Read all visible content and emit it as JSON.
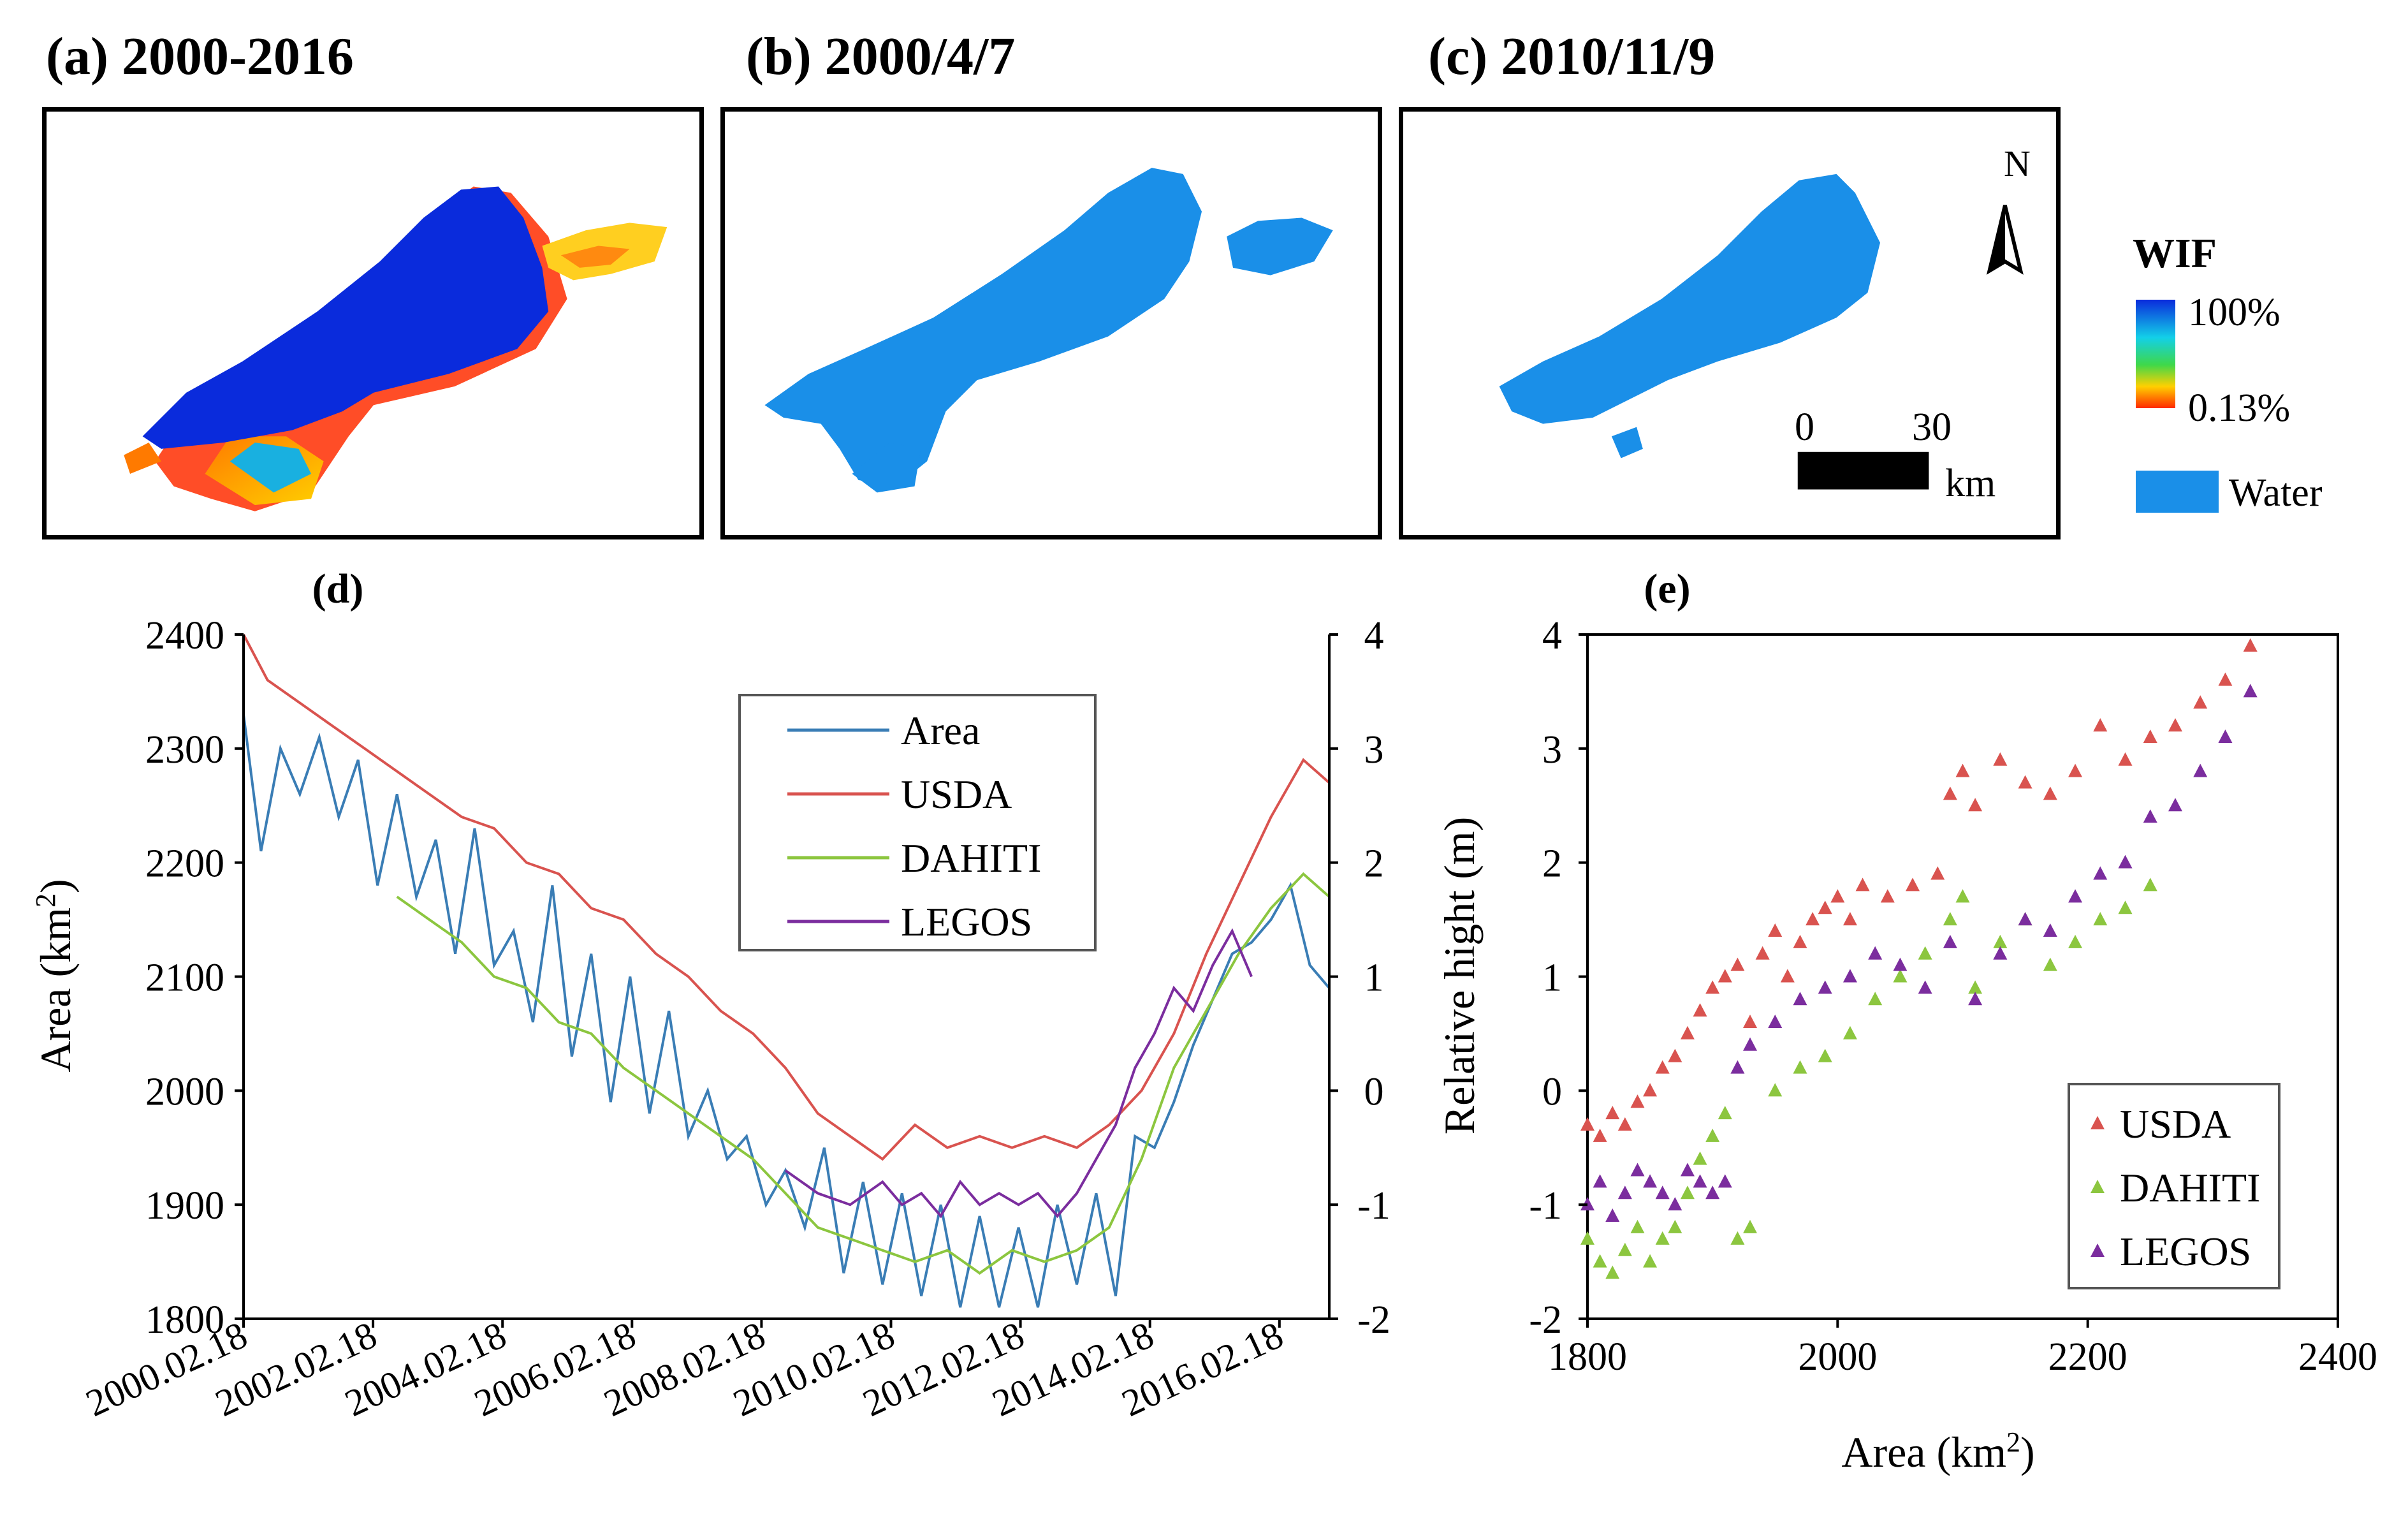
{
  "panels": {
    "a": {
      "title": "(a) 2000-2016"
    },
    "b": {
      "title": "(b) 2000/4/7"
    },
    "c": {
      "title": "(c) 2010/11/9"
    }
  },
  "map_legend": {
    "title": "WIF",
    "max_label": "100%",
    "min_label": "0.13%",
    "water_label": "Water",
    "north_label": "N",
    "scale_start": "0",
    "scale_end": "30",
    "scale_unit": "km",
    "colors": {
      "water": "#1a8fe8",
      "wif_high": "#0a2bdc",
      "wif_low": "#ff2a00"
    }
  },
  "chart_data": [
    {
      "id": "d",
      "type": "line",
      "title": "(d)",
      "ylabel": "Area (km²)",
      "ylim": [
        1800,
        2400
      ],
      "yticks": [
        1800,
        1900,
        2000,
        2100,
        2200,
        2300,
        2400
      ],
      "y2lim": [
        -2,
        4
      ],
      "y2ticks": [
        -2,
        -1,
        0,
        1,
        2,
        3,
        4
      ],
      "x_start": 2000.13,
      "x_end": 2016.9,
      "xticks": [
        {
          "label": "2000.02.18",
          "x": 2000.13
        },
        {
          "label": "2002.02.18",
          "x": 2002.13
        },
        {
          "label": "2004.02.18",
          "x": 2004.13
        },
        {
          "label": "2006.02.18",
          "x": 2006.13
        },
        {
          "label": "2008.02.18",
          "x": 2008.13
        },
        {
          "label": "2010.02.18",
          "x": 2010.13
        },
        {
          "label": "2012.02.18",
          "x": 2012.13
        },
        {
          "label": "2014.02.18",
          "x": 2014.13
        },
        {
          "label": "2016.02.18",
          "x": 2016.13
        }
      ],
      "legend": [
        "Area",
        "USDA",
        "DAHITI",
        "LEGOS"
      ],
      "series": [
        {
          "name": "Area",
          "axis": "left",
          "color": "#3a7db5",
          "x": [
            2000.13,
            2000.4,
            2000.7,
            2001.0,
            2001.3,
            2001.6,
            2001.9,
            2002.2,
            2002.5,
            2002.8,
            2003.1,
            2003.4,
            2003.7,
            2004.0,
            2004.3,
            2004.6,
            2004.9,
            2005.2,
            2005.5,
            2005.8,
            2006.1,
            2006.4,
            2006.7,
            2007.0,
            2007.3,
            2007.6,
            2007.9,
            2008.2,
            2008.5,
            2008.8,
            2009.1,
            2009.4,
            2009.7,
            2010.0,
            2010.3,
            2010.6,
            2010.9,
            2011.2,
            2011.5,
            2011.8,
            2012.1,
            2012.4,
            2012.7,
            2013.0,
            2013.3,
            2013.6,
            2013.9,
            2014.2,
            2014.5,
            2014.8,
            2015.1,
            2015.4,
            2015.7,
            2016.0,
            2016.3,
            2016.6,
            2016.9
          ],
          "y": [
            2330,
            2210,
            2300,
            2260,
            2310,
            2240,
            2290,
            2180,
            2260,
            2170,
            2220,
            2120,
            2230,
            2110,
            2140,
            2060,
            2180,
            2030,
            2120,
            1990,
            2100,
            1980,
            2070,
            1960,
            2000,
            1940,
            1960,
            1900,
            1930,
            1880,
            1950,
            1840,
            1920,
            1830,
            1910,
            1820,
            1900,
            1810,
            1890,
            1810,
            1880,
            1810,
            1900,
            1830,
            1910,
            1820,
            1960,
            1950,
            1990,
            2040,
            2080,
            2120,
            2130,
            2150,
            2180,
            2110,
            2090
          ]
        },
        {
          "name": "USDA",
          "axis": "right",
          "color": "#d9534f",
          "x": [
            2000.13,
            2000.5,
            2001.0,
            2001.5,
            2002.0,
            2002.5,
            2003.0,
            2003.5,
            2004.0,
            2004.5,
            2005.0,
            2005.5,
            2006.0,
            2006.5,
            2007.0,
            2007.5,
            2008.0,
            2008.5,
            2009.0,
            2009.5,
            2010.0,
            2010.5,
            2011.0,
            2011.5,
            2012.0,
            2012.5,
            2013.0,
            2013.5,
            2014.0,
            2014.5,
            2015.0,
            2015.5,
            2016.0,
            2016.5,
            2016.9
          ],
          "y": [
            4.0,
            3.6,
            3.4,
            3.2,
            3.0,
            2.8,
            2.6,
            2.4,
            2.3,
            2.0,
            1.9,
            1.6,
            1.5,
            1.2,
            1.0,
            0.7,
            0.5,
            0.2,
            -0.2,
            -0.4,
            -0.6,
            -0.3,
            -0.5,
            -0.4,
            -0.5,
            -0.4,
            -0.5,
            -0.3,
            0.0,
            0.5,
            1.2,
            1.8,
            2.4,
            2.9,
            2.7
          ]
        },
        {
          "name": "DAHITI",
          "axis": "right",
          "color": "#8cc63f",
          "x": [
            2002.5,
            2003.0,
            2003.5,
            2004.0,
            2004.5,
            2005.0,
            2005.5,
            2006.0,
            2006.5,
            2007.0,
            2007.5,
            2008.0,
            2008.5,
            2009.0,
            2009.5,
            2010.0,
            2010.5,
            2011.0,
            2011.5,
            2012.0,
            2012.5,
            2013.0,
            2013.5,
            2014.0,
            2014.5,
            2015.0,
            2015.5,
            2016.0,
            2016.5,
            2016.9
          ],
          "y": [
            1.7,
            1.5,
            1.3,
            1.0,
            0.9,
            0.6,
            0.5,
            0.2,
            0.0,
            -0.2,
            -0.4,
            -0.6,
            -0.9,
            -1.2,
            -1.3,
            -1.4,
            -1.5,
            -1.4,
            -1.6,
            -1.4,
            -1.5,
            -1.4,
            -1.2,
            -0.6,
            0.2,
            0.7,
            1.2,
            1.6,
            1.9,
            1.7
          ]
        },
        {
          "name": "LEGOS",
          "axis": "right",
          "color": "#7b2d9e",
          "x": [
            2008.5,
            2009.0,
            2009.5,
            2010.0,
            2010.3,
            2010.6,
            2010.9,
            2011.2,
            2011.5,
            2011.8,
            2012.1,
            2012.4,
            2012.7,
            2013.0,
            2013.3,
            2013.6,
            2013.9,
            2014.2,
            2014.5,
            2014.8,
            2015.1,
            2015.4,
            2015.7
          ],
          "y": [
            -0.7,
            -0.9,
            -1.0,
            -0.8,
            -1.0,
            -0.9,
            -1.1,
            -0.8,
            -1.0,
            -0.9,
            -1.0,
            -0.9,
            -1.1,
            -0.9,
            -0.6,
            -0.3,
            0.2,
            0.5,
            0.9,
            0.7,
            1.1,
            1.4,
            1.0
          ]
        }
      ]
    },
    {
      "id": "e",
      "type": "scatter",
      "title": "(e)",
      "xlabel": "Area (km²)",
      "ylabel": "Relative hight (m)",
      "xlim": [
        1800,
        2400
      ],
      "ylim": [
        -2,
        4
      ],
      "xticks": [
        1800,
        2000,
        2200,
        2400
      ],
      "yticks": [
        -2,
        -1,
        0,
        1,
        2,
        3,
        4
      ],
      "legend": [
        "USDA",
        "DAHITI",
        "LEGOS"
      ],
      "series": [
        {
          "name": "USDA",
          "color": "#d9534f",
          "x": [
            1800,
            1810,
            1820,
            1830,
            1840,
            1850,
            1860,
            1870,
            1880,
            1890,
            1900,
            1910,
            1920,
            1930,
            1940,
            1950,
            1960,
            1970,
            1980,
            1990,
            2000,
            2010,
            2020,
            2040,
            2060,
            2080,
            2090,
            2100,
            2110,
            2130,
            2150,
            2170,
            2190,
            2210,
            2230,
            2250,
            2270,
            2290,
            2310,
            2330
          ],
          "y": [
            -0.3,
            -0.4,
            -0.2,
            -0.3,
            -0.1,
            0.0,
            0.2,
            0.3,
            0.5,
            0.7,
            0.9,
            1.0,
            1.1,
            0.6,
            1.2,
            1.4,
            1.0,
            1.3,
            1.5,
            1.6,
            1.7,
            1.5,
            1.8,
            1.7,
            1.8,
            1.9,
            2.6,
            2.8,
            2.5,
            2.9,
            2.7,
            2.6,
            2.8,
            3.2,
            2.9,
            3.1,
            3.2,
            3.4,
            3.6,
            3.9
          ]
        },
        {
          "name": "DAHITI",
          "color": "#8cc63f",
          "x": [
            1800,
            1810,
            1820,
            1830,
            1840,
            1850,
            1860,
            1870,
            1880,
            1890,
            1900,
            1910,
            1920,
            1930,
            1950,
            1970,
            1990,
            2010,
            2030,
            2050,
            2070,
            2090,
            2100,
            2110,
            2130,
            2150,
            2170,
            2190,
            2210,
            2230,
            2250
          ],
          "y": [
            -1.3,
            -1.5,
            -1.6,
            -1.4,
            -1.2,
            -1.5,
            -1.3,
            -1.2,
            -0.9,
            -0.6,
            -0.4,
            -0.2,
            -1.3,
            -1.2,
            0.0,
            0.2,
            0.3,
            0.5,
            0.8,
            1.0,
            1.2,
            1.5,
            1.7,
            0.9,
            1.3,
            1.5,
            1.1,
            1.3,
            1.5,
            1.6,
            1.8
          ]
        },
        {
          "name": "LEGOS",
          "color": "#7b2d9e",
          "x": [
            1800,
            1810,
            1820,
            1830,
            1840,
            1850,
            1860,
            1870,
            1880,
            1890,
            1900,
            1910,
            1920,
            1930,
            1950,
            1970,
            1990,
            2010,
            2030,
            2050,
            2070,
            2090,
            2110,
            2130,
            2150,
            2170,
            2190,
            2210,
            2230,
            2250,
            2270,
            2290,
            2310,
            2330
          ],
          "y": [
            -1.0,
            -0.8,
            -1.1,
            -0.9,
            -0.7,
            -0.8,
            -0.9,
            -1.0,
            -0.7,
            -0.8,
            -0.9,
            -0.8,
            0.2,
            0.4,
            0.6,
            0.8,
            0.9,
            1.0,
            1.2,
            1.1,
            0.9,
            1.3,
            0.8,
            1.2,
            1.5,
            1.4,
            1.7,
            1.9,
            2.0,
            2.4,
            2.5,
            2.8,
            3.1,
            3.5
          ]
        }
      ]
    }
  ]
}
